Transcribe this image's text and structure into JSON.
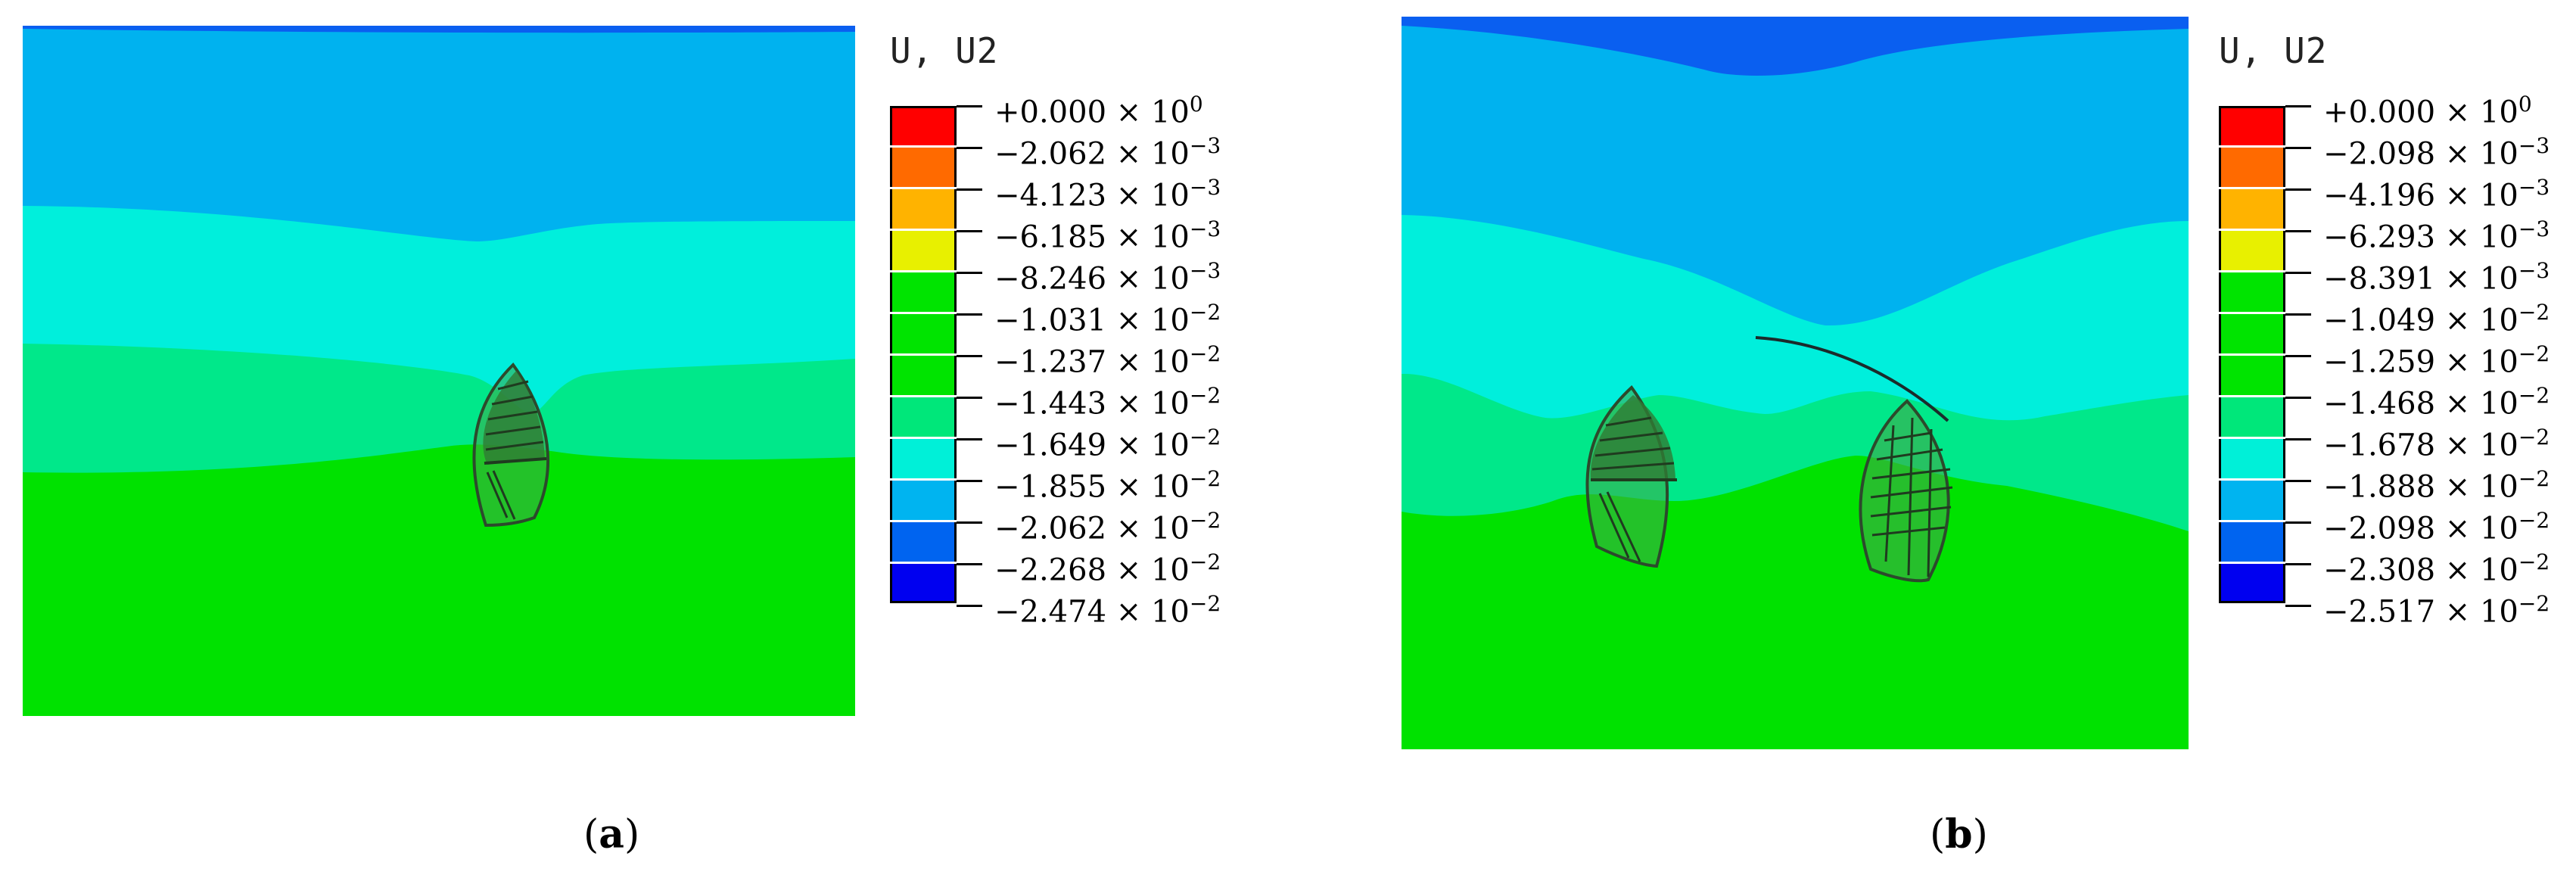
{
  "panels": [
    {
      "id": "a",
      "caption_open": "(",
      "caption_letter": "a",
      "caption_close": ")",
      "legend_title": "U, U2",
      "legend_values": [
        {
          "mantissa": "+0.000",
          "times": "× 10",
          "exp": "0"
        },
        {
          "mantissa": "−2.062",
          "times": "× 10",
          "exp": "−3"
        },
        {
          "mantissa": "−4.123",
          "times": "× 10",
          "exp": "−3"
        },
        {
          "mantissa": "−6.185",
          "times": "× 10",
          "exp": "−3"
        },
        {
          "mantissa": "−8.246",
          "times": "× 10",
          "exp": "−3"
        },
        {
          "mantissa": "−1.031",
          "times": "× 10",
          "exp": "−2"
        },
        {
          "mantissa": "−1.237",
          "times": "× 10",
          "exp": "−2"
        },
        {
          "mantissa": "−1.443",
          "times": "× 10",
          "exp": "−2"
        },
        {
          "mantissa": "−1.649",
          "times": "× 10",
          "exp": "−2"
        },
        {
          "mantissa": "−1.855",
          "times": "× 10",
          "exp": "−2"
        },
        {
          "mantissa": "−2.062",
          "times": "× 10",
          "exp": "−2"
        },
        {
          "mantissa": "−2.268",
          "times": "× 10",
          "exp": "−2"
        },
        {
          "mantissa": "−2.474",
          "times": "× 10",
          "exp": "−2"
        }
      ]
    },
    {
      "id": "b",
      "caption_open": "(",
      "caption_letter": "b",
      "caption_close": ")",
      "legend_title": "U, U2",
      "legend_values": [
        {
          "mantissa": "+0.000",
          "times": "× 10",
          "exp": "0"
        },
        {
          "mantissa": "−2.098",
          "times": "× 10",
          "exp": "−3"
        },
        {
          "mantissa": "−4.196",
          "times": "× 10",
          "exp": "−3"
        },
        {
          "mantissa": "−6.293",
          "times": "× 10",
          "exp": "−3"
        },
        {
          "mantissa": "−8.391",
          "times": "× 10",
          "exp": "−3"
        },
        {
          "mantissa": "−1.049",
          "times": "× 10",
          "exp": "−2"
        },
        {
          "mantissa": "−1.259",
          "times": "× 10",
          "exp": "−2"
        },
        {
          "mantissa": "−1.468",
          "times": "× 10",
          "exp": "−2"
        },
        {
          "mantissa": "−1.678",
          "times": "× 10",
          "exp": "−2"
        },
        {
          "mantissa": "−1.888",
          "times": "× 10",
          "exp": "−2"
        },
        {
          "mantissa": "−2.098",
          "times": "× 10",
          "exp": "−2"
        },
        {
          "mantissa": "−2.308",
          "times": "× 10",
          "exp": "−2"
        },
        {
          "mantissa": "−2.517",
          "times": "× 10",
          "exp": "−2"
        }
      ]
    }
  ],
  "legend_colors": [
    "#ff0000",
    "#ff6a00",
    "#ffb300",
    "#e8f000",
    "#00e400",
    "#00e400",
    "#00e400",
    "#00e77a",
    "#00f0d8",
    "#00b4f0",
    "#0064f0",
    "#0000f0"
  ],
  "contour_colors": {
    "band_dark_blue": "#0a5ff0",
    "band_blue": "#00b2ef",
    "band_cyan": "#00efdc",
    "band_mint": "#00e88a",
    "band_green": "#00e200",
    "seed_shell": "#3a8a3a",
    "seed_hatch": "#1f5a1f"
  }
}
